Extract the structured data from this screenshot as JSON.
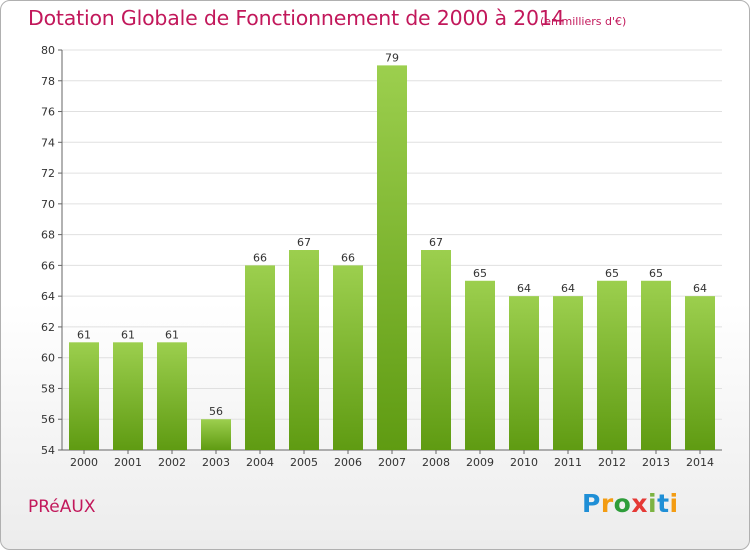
{
  "title": "Dotation Globale de Fonctionnement de 2000 à 2014",
  "unit_note": "(en milliers d'€)",
  "commune": "PRéAUX",
  "logo": {
    "text": "Proxiti",
    "letters": [
      "P",
      "r",
      "o",
      "x",
      "i",
      "t",
      "i"
    ],
    "colors": [
      "#1f8fd6",
      "#f39c12",
      "#2e9d3a",
      "#e53935",
      "#7cb342",
      "#1f8fd6",
      "#f39c12"
    ]
  },
  "colors": {
    "accent": "#c2185b",
    "bar_top": "#9ccf4e",
    "bar_bottom": "#5f9b12",
    "grid": "#e0e0e0",
    "axis_text": "#333333"
  },
  "chart_data": {
    "type": "bar",
    "title": "Dotation Globale de Fonctionnement de 2000 à 2014",
    "xlabel": "",
    "ylabel": "",
    "ylim": [
      54,
      80
    ],
    "yticks": [
      54,
      56,
      58,
      60,
      62,
      64,
      66,
      68,
      70,
      72,
      74,
      76,
      78,
      80
    ],
    "grid": true,
    "categories": [
      "2000",
      "2001",
      "2002",
      "2003",
      "2004",
      "2005",
      "2006",
      "2007",
      "2008",
      "2009",
      "2010",
      "2011",
      "2012",
      "2013",
      "2014"
    ],
    "values": [
      61,
      61,
      61,
      56,
      66,
      67,
      66,
      79,
      67,
      65,
      64,
      64,
      65,
      65,
      64
    ]
  }
}
